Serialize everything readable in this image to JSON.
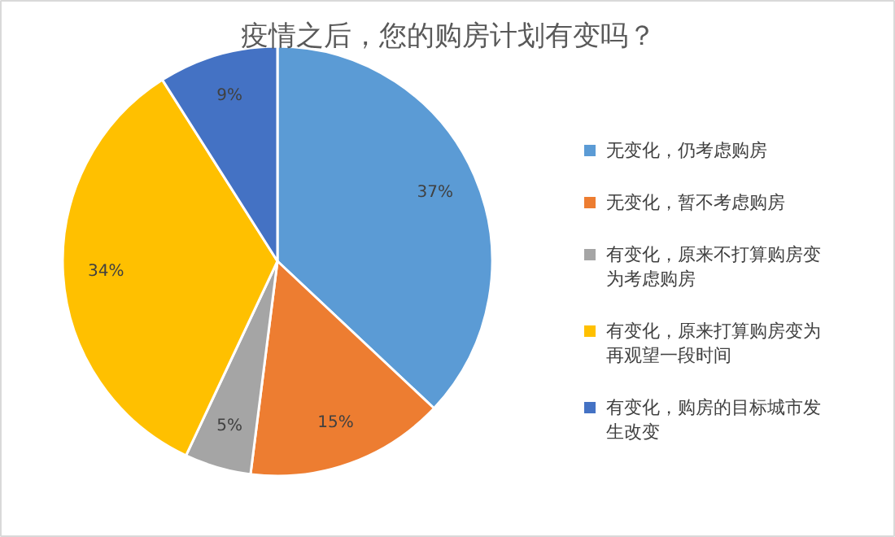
{
  "chart_data": {
    "type": "pie",
    "title": "疫情之后，您的购房计划有变吗？",
    "categories": [
      "无变化，仍考虑购房",
      "无变化，暂不考虑购房",
      "有变化，原来不打算购房变为考虑购房",
      "有变化，原来打算购房变为再观望一段时间",
      "有变化，购房的目标城市发生改变"
    ],
    "values": [
      37,
      15,
      5,
      34,
      9
    ],
    "value_labels": [
      "37%",
      "15%",
      "5%",
      "34%",
      "9%"
    ],
    "colors": [
      "#5b9bd5",
      "#ed7d31",
      "#a5a5a5",
      "#ffc000",
      "#4472c4"
    ],
    "legend": "right"
  }
}
